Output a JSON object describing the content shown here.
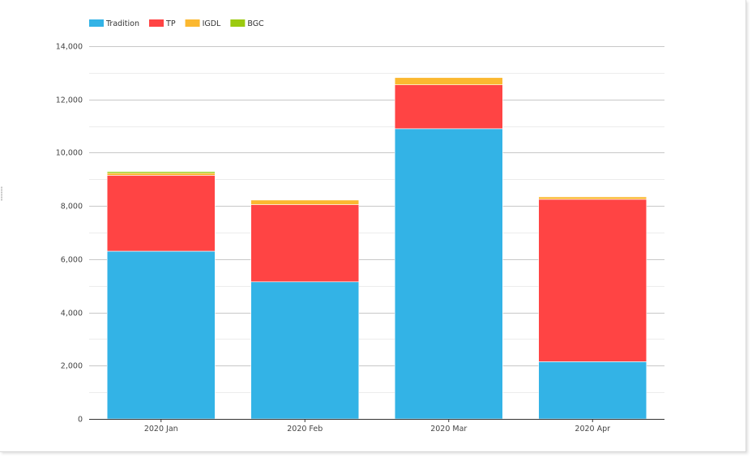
{
  "chart_data": {
    "type": "bar",
    "stacked": true,
    "categories": [
      "2020 Jan",
      "2020 Feb",
      "2020 Mar",
      "2020 Apr"
    ],
    "series": [
      {
        "name": "Tradition",
        "color": "#33b3e6",
        "values": [
          6300,
          5150,
          10900,
          2150
        ]
      },
      {
        "name": "TP",
        "color": "#ff4444",
        "values": [
          2850,
          2900,
          1650,
          6100
        ]
      },
      {
        "name": "IGDL",
        "color": "#fbb830",
        "values": [
          80,
          170,
          270,
          90
        ]
      },
      {
        "name": "BGC",
        "color": "#9bca0f",
        "values": [
          60,
          0,
          0,
          0
        ]
      }
    ],
    "ylim": [
      0,
      14000
    ],
    "yticks": [
      "0",
      "2,000",
      "4,000",
      "6,000",
      "8,000",
      "10,000",
      "12,000",
      "14,000"
    ],
    "grid": true,
    "legend_position": "top-left"
  }
}
